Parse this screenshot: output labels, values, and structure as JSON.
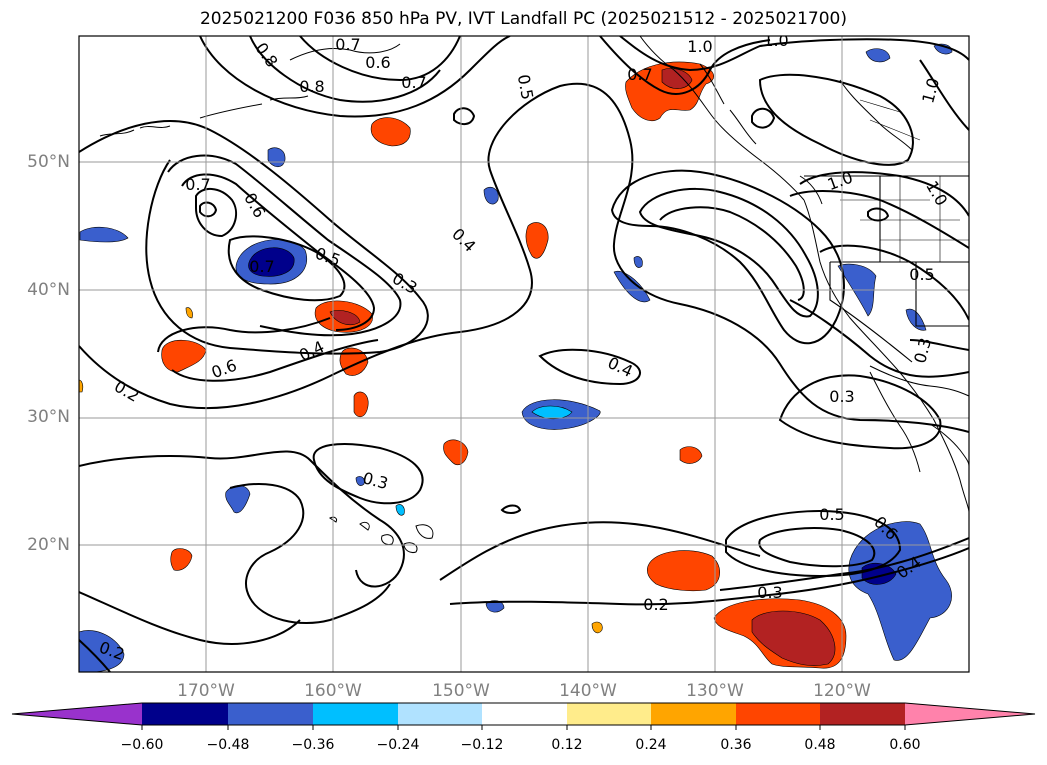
{
  "title": "2025021200 F036 850 hPa PV, IVT Landfall PC (2025021512 - 2025021700)",
  "lat_labels": [
    "50°N",
    "40°N",
    "30°N",
    "20°N"
  ],
  "lon_labels": [
    "170°W",
    "160°W",
    "150°W",
    "140°W",
    "130°W",
    "120°W"
  ],
  "colorbar": {
    "tick_labels": [
      "−0.60",
      "−0.48",
      "−0.36",
      "−0.24",
      "−0.12",
      "0.12",
      "0.24",
      "0.36",
      "0.48",
      "0.60"
    ],
    "colors": [
      "#9932cc",
      "#00008b",
      "#3a5fcd",
      "#00bfff",
      "#b0e2ff",
      "#ffffff",
      "#ffec8b",
      "#ffa500",
      "#ff4500",
      "#b22222",
      "#ff82ab"
    ]
  },
  "contour_labels": [
    "0.8",
    "0.7",
    "0.6",
    "1.0",
    "1.0",
    "0.5",
    "0.8",
    "0.7",
    "1.0",
    "0.7",
    "0.6",
    "0.7",
    "0.5",
    "0.4",
    "0.3",
    "0.4",
    "0.6",
    "0.2",
    "0.4",
    "0.3",
    "0.7",
    "0.5",
    "0.3",
    "0.3",
    "0.5",
    "0.6",
    "0.4",
    "0.3",
    "0.2",
    "0.2",
    "1.0",
    "1.0"
  ]
}
